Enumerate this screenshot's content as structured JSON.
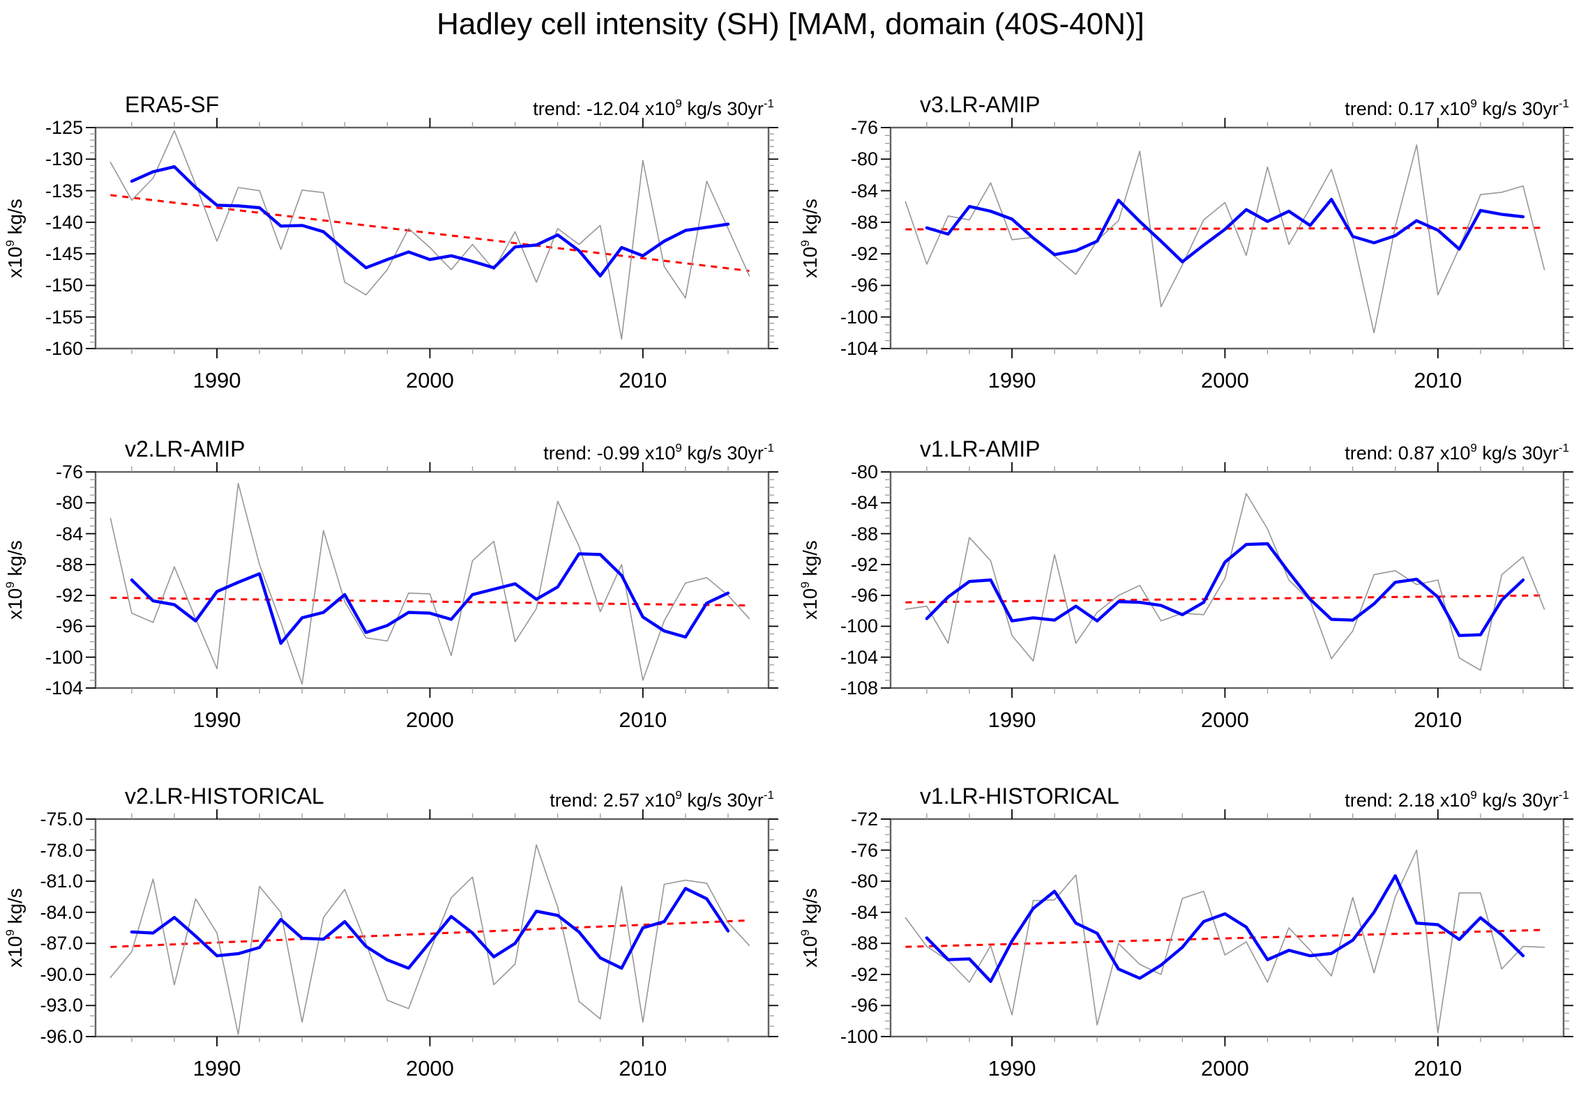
{
  "title": "Hadley cell intensity (SH) [MAM, domain (40S-40N)]",
  "ylabel_parts": {
    "base": "x10",
    "sup": "9",
    "rest": " kg/s"
  },
  "trend_format": {
    "pre": "trend: ",
    "x10": " x10",
    "sup": "9",
    "unit": " kg/s 30yr",
    "sup2": "-1"
  },
  "colors": {
    "annual": "#979797",
    "smoothed": "#0000ff",
    "trend": "#ff0000",
    "axis_frame": "#606060",
    "tick_major": "#000000",
    "tick_minor": "#9a9a9a",
    "text": "#000000",
    "background": "#ffffff"
  },
  "x_axis": {
    "tick_labels": [
      "1990",
      "2000",
      "2010"
    ],
    "tick_vals": [
      1990,
      2000,
      2010
    ],
    "minor_step": 2,
    "lim": [
      1984.3,
      2015.9
    ]
  },
  "chart_data": [
    {
      "type": "line",
      "title": "ERA5-SF",
      "trend_value": "-12.04",
      "ylim": [
        -160,
        -125
      ],
      "ytick_vals": [
        -125,
        -130,
        -135,
        -140,
        -145,
        -150,
        -155,
        -160
      ],
      "ytick_labels": [
        "-125",
        "-130",
        "-135",
        "-140",
        "-145",
        "-150",
        "-155",
        "-160"
      ],
      "y_minor_step": 1,
      "series": {
        "annual": {
          "start_year": 1985,
          "values": [
            -130.5,
            -136.5,
            -133.0,
            -125.5,
            -134.0,
            -143.0,
            -134.5,
            -135.0,
            -144.3,
            -134.9,
            -135.3,
            -149.5,
            -151.5,
            -147.5,
            -141.0,
            -144.0,
            -147.5,
            -143.5,
            -147.5,
            -141.5,
            -149.5,
            -141.0,
            -143.5,
            -140.5,
            -158.5,
            -130.2,
            -147.0,
            -152.0,
            -133.5,
            -141.0,
            -148.5
          ]
        },
        "smoothed": {
          "start_year": 1986,
          "values": [
            -133.5,
            -132.0,
            -131.2,
            -134.5,
            -137.3,
            -137.4,
            -137.7,
            -140.6,
            -140.5,
            -141.5,
            -144.4,
            -147.2,
            -145.9,
            -144.7,
            -145.9,
            -145.3,
            -146.2,
            -147.2,
            -143.9,
            -143.6,
            -142.0,
            -144.5,
            -148.5,
            -144.0,
            -145.3,
            -143.0,
            -141.3,
            -140.8,
            -140.3
          ]
        }
      },
      "trend_line": {
        "start_year": 1985,
        "end_year": 2015,
        "start_value": -135.7,
        "end_value": -147.7
      }
    },
    {
      "type": "line",
      "title": "v3.LR-AMIP",
      "trend_value": "0.17",
      "ylim": [
        -104,
        -76
      ],
      "ytick_vals": [
        -76,
        -80,
        -84,
        -88,
        -92,
        -96,
        -100,
        -104
      ],
      "ytick_labels": [
        "-76",
        "-80",
        "-84",
        "-88",
        "-92",
        "-96",
        "-100",
        "-104"
      ],
      "y_minor_step": 1,
      "series": {
        "annual": {
          "start_year": 1985,
          "values": [
            -85.4,
            -93.3,
            -87.2,
            -87.7,
            -83.0,
            -90.2,
            -89.9,
            -92.3,
            -94.6,
            -90.3,
            -87.8,
            -79.0,
            -98.7,
            -93.4,
            -87.7,
            -85.5,
            -92.2,
            -81.0,
            -90.8,
            -86.2,
            -81.3,
            -90.0,
            -102.0,
            -88.6,
            -78.2,
            -97.2,
            -91.3,
            -84.5,
            -84.2,
            -83.4,
            -94.0
          ]
        },
        "smoothed": {
          "start_year": 1986,
          "values": [
            -88.7,
            -89.5,
            -86.0,
            -86.6,
            -87.6,
            -90.0,
            -92.1,
            -91.6,
            -90.4,
            -85.2,
            -87.9,
            -90.4,
            -93.0,
            -90.9,
            -88.9,
            -86.4,
            -87.9,
            -86.6,
            -88.4,
            -85.1,
            -89.8,
            -90.6,
            -89.7,
            -87.8,
            -89.0,
            -91.4,
            -86.5,
            -87.0,
            -87.3
          ]
        }
      },
      "trend_line": {
        "start_year": 1985,
        "end_year": 2015,
        "start_value": -88.9,
        "end_value": -88.7
      }
    },
    {
      "type": "line",
      "title": "v2.LR-AMIP",
      "trend_value": "-0.99",
      "ylim": [
        -104,
        -76
      ],
      "ytick_vals": [
        -76,
        -80,
        -84,
        -88,
        -92,
        -96,
        -100,
        -104
      ],
      "ytick_labels": [
        "-76",
        "-80",
        "-84",
        "-88",
        "-92",
        "-96",
        "-100",
        "-104"
      ],
      "y_minor_step": 1,
      "series": {
        "annual": {
          "start_year": 1985,
          "values": [
            -82.0,
            -94.3,
            -95.5,
            -88.3,
            -95.0,
            -101.5,
            -77.5,
            -88.0,
            -95.5,
            -103.5,
            -83.6,
            -92.8,
            -97.5,
            -97.9,
            -91.7,
            -91.8,
            -99.8,
            -87.5,
            -85.0,
            -98.0,
            -93.7,
            -79.8,
            -85.6,
            -94.1,
            -88.0,
            -103.0,
            -95.3,
            -90.4,
            -89.7,
            -92.0,
            -95.0
          ]
        },
        "smoothed": {
          "start_year": 1986,
          "values": [
            -90.0,
            -92.7,
            -93.2,
            -95.3,
            -91.5,
            -90.3,
            -89.2,
            -98.2,
            -94.9,
            -94.2,
            -91.9,
            -96.8,
            -95.9,
            -94.2,
            -94.3,
            -95.1,
            -91.9,
            -91.2,
            -90.5,
            -92.5,
            -90.9,
            -86.6,
            -86.7,
            -89.4,
            -94.8,
            -96.6,
            -97.4,
            -93.0,
            -91.7
          ]
        }
      },
      "trend_line": {
        "start_year": 1985,
        "end_year": 2015,
        "start_value": -92.3,
        "end_value": -93.3
      }
    },
    {
      "type": "line",
      "title": "v1.LR-AMIP",
      "trend_value": "0.87",
      "ylim": [
        -108,
        -80
      ],
      "ytick_vals": [
        -80,
        -84,
        -88,
        -92,
        -96,
        -100,
        -104,
        -108
      ],
      "ytick_labels": [
        "-80",
        "-84",
        "-88",
        "-92",
        "-96",
        "-100",
        "-104",
        "-108"
      ],
      "y_minor_step": 1,
      "series": {
        "annual": {
          "start_year": 1985,
          "values": [
            -97.8,
            -97.4,
            -102.2,
            -88.5,
            -91.5,
            -101.2,
            -104.5,
            -90.7,
            -102.2,
            -98.2,
            -96.0,
            -94.7,
            -99.3,
            -98.3,
            -98.5,
            -93.8,
            -82.8,
            -87.4,
            -94.0,
            -96.7,
            -104.2,
            -100.6,
            -93.3,
            -92.8,
            -94.6,
            -94.0,
            -104.1,
            -105.7,
            -93.3,
            -91.0,
            -97.8
          ]
        },
        "smoothed": {
          "start_year": 1986,
          "values": [
            -99.0,
            -96.2,
            -94.2,
            -94.0,
            -99.3,
            -98.9,
            -99.2,
            -97.4,
            -99.3,
            -96.8,
            -96.9,
            -97.3,
            -98.5,
            -96.9,
            -91.7,
            -89.4,
            -89.3,
            -93.0,
            -96.5,
            -99.1,
            -99.2,
            -97.1,
            -94.3,
            -93.9,
            -96.2,
            -101.2,
            -101.1,
            -96.6,
            -94.0
          ]
        }
      },
      "trend_line": {
        "start_year": 1985,
        "end_year": 2015,
        "start_value": -96.9,
        "end_value": -96.0
      }
    },
    {
      "type": "line",
      "title": "v2.LR-HISTORICAL",
      "trend_value": "2.57",
      "ylim": [
        -96,
        -75
      ],
      "ytick_vals": [
        -75,
        -78,
        -81,
        -84,
        -87,
        -90,
        -93,
        -96
      ],
      "ytick_labels": [
        "-75.0",
        "-78.0",
        "-81.0",
        "-84.0",
        "-87.0",
        "-90.0",
        "-93.0",
        "-96.0"
      ],
      "y_minor_step": 1,
      "series": {
        "annual": {
          "start_year": 1985,
          "values": [
            -90.3,
            -87.8,
            -80.8,
            -91.0,
            -82.7,
            -86.0,
            -95.8,
            -81.5,
            -84.0,
            -94.6,
            -84.5,
            -81.8,
            -87.0,
            -92.5,
            -93.3,
            -87.8,
            -82.6,
            -80.6,
            -91.0,
            -89.0,
            -77.5,
            -83.5,
            -92.6,
            -94.3,
            -81.5,
            -94.6,
            -81.3,
            -80.9,
            -81.2,
            -85.0,
            -87.2
          ]
        },
        "smoothed": {
          "start_year": 1986,
          "values": [
            -85.9,
            -86.0,
            -84.5,
            -86.3,
            -88.2,
            -88.0,
            -87.4,
            -84.7,
            -86.5,
            -86.6,
            -84.9,
            -87.3,
            -88.6,
            -89.4,
            -86.9,
            -84.4,
            -86.0,
            -88.3,
            -87.0,
            -83.9,
            -84.3,
            -85.9,
            -88.4,
            -89.4,
            -85.5,
            -84.9,
            -81.7,
            -82.7,
            -85.8
          ]
        }
      },
      "trend_line": {
        "start_year": 1985,
        "end_year": 2015,
        "start_value": -87.35,
        "end_value": -84.78
      }
    },
    {
      "type": "line",
      "title": "v1.LR-HISTORICAL",
      "trend_value": "2.18",
      "ylim": [
        -100,
        -72
      ],
      "ytick_vals": [
        -72,
        -76,
        -80,
        -84,
        -88,
        -92,
        -96,
        -100
      ],
      "ytick_labels": [
        "-72",
        "-76",
        "-80",
        "-84",
        "-88",
        "-92",
        "-96",
        "-100"
      ],
      "y_minor_step": 1,
      "series": {
        "annual": {
          "start_year": 1985,
          "values": [
            -84.7,
            -88.4,
            -90.2,
            -93.0,
            -88.3,
            -97.2,
            -82.5,
            -82.4,
            -79.2,
            -98.5,
            -88.0,
            -90.7,
            -92.0,
            -82.2,
            -81.3,
            -89.5,
            -87.8,
            -93.0,
            -86.0,
            -88.9,
            -92.2,
            -82.1,
            -91.8,
            -82.0,
            -76.0,
            -99.5,
            -81.5,
            -81.5,
            -91.3,
            -88.4,
            -88.5
          ]
        },
        "smoothed": {
          "start_year": 1986,
          "values": [
            -87.3,
            -90.1,
            -90.0,
            -92.9,
            -87.7,
            -83.5,
            -81.3,
            -85.4,
            -86.7,
            -91.3,
            -92.5,
            -90.8,
            -88.5,
            -85.2,
            -84.2,
            -85.9,
            -90.1,
            -88.9,
            -89.6,
            -89.3,
            -87.6,
            -84.0,
            -79.3,
            -85.4,
            -85.6,
            -87.5,
            -84.7,
            -86.9,
            -89.6
          ]
        }
      },
      "trend_line": {
        "start_year": 1985,
        "end_year": 2015,
        "start_value": -88.45,
        "end_value": -86.27
      }
    }
  ]
}
